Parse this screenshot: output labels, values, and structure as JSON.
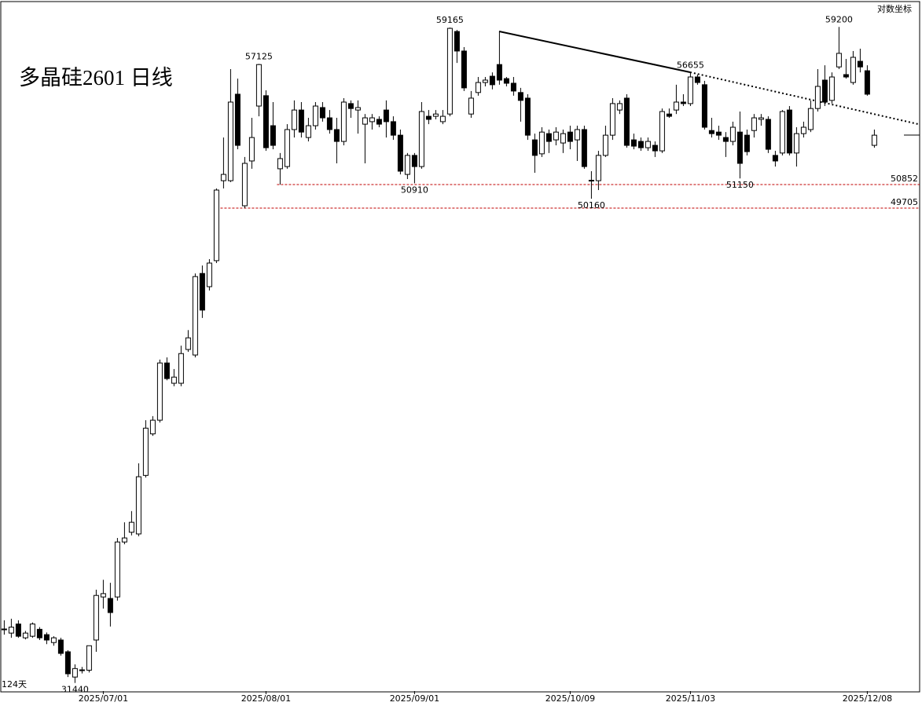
{
  "chart_data": {
    "type": "candlestick",
    "title": "多晶硅2601 日线",
    "scale_label": "对数坐标",
    "period_label": "124天",
    "ylog": true,
    "ylim": [
      31195,
      60620
    ],
    "xlim": [
      -0.6,
      129.4
    ],
    "xticks": [
      {
        "value": 14,
        "label": "2025/07/01"
      },
      {
        "value": 37,
        "label": "2025/08/01"
      },
      {
        "value": 58,
        "label": "2025/09/01"
      },
      {
        "value": 80,
        "label": "2025/10/09"
      },
      {
        "value": 97,
        "label": "2025/11/03"
      },
      {
        "value": 122,
        "label": "2025/12/08"
      }
    ],
    "up_color": "#ffffff",
    "down_color": "#000000",
    "open": [
      33110,
      32990,
      33280,
      32840,
      32890,
      33110,
      32940,
      32690,
      32770,
      32400,
      31620,
      31830,
      31830,
      32770,
      34160,
      34110,
      34160,
      36020,
      36360,
      36300,
      38410,
      39980,
      40510,
      42810,
      41980,
      41980,
      43370,
      43140,
      46670,
      46080,
      47250,
      51040,
      51040,
      55480,
      49820,
      52020,
      54850,
      55400,
      53820,
      51630,
      51740,
      53620,
      54640,
      53210,
      53820,
      54770,
      54230,
      53620,
      53010,
      54980,
      54640,
      53900,
      54030,
      54150,
      54640,
      54030,
      53330,
      51350,
      52300,
      51740,
      54310,
      54310,
      54030,
      54430,
      58940,
      57840,
      54430,
      55570,
      56110,
      56450,
      57090,
      56320,
      56070,
      55570,
      55270,
      53090,
      52380,
      53410,
      53090,
      52930,
      53490,
      53090,
      53620,
      51040,
      51040,
      52300,
      53330,
      54640,
      55270,
      53090,
      53010,
      52690,
      52810,
      52530,
      54430,
      54640,
      55060,
      54980,
      56410,
      55990,
      53570,
      53490,
      53210,
      53010,
      53490,
      53330,
      53570,
      54150,
      54150,
      52300,
      52420,
      54640,
      52420,
      53410,
      53620,
      54720,
      56240,
      55150,
      56960,
      56540,
      56110,
      57270,
      56750,
      52810
    ],
    "high": [
      33400,
      33450,
      33400,
      33060,
      33330,
      33180,
      33010,
      32890,
      32840,
      32450,
      32010,
      31930,
      32590,
      34400,
      34730,
      34630,
      36160,
      36710,
      37110,
      38860,
      40510,
      40670,
      42950,
      43040,
      42560,
      43530,
      44190,
      46670,
      47030,
      47320,
      50660,
      53210,
      56840,
      56320,
      52220,
      54230,
      57125,
      55690,
      55060,
      52420,
      53900,
      55150,
      55060,
      54230,
      55060,
      55060,
      54640,
      54230,
      55270,
      55150,
      55150,
      54430,
      54430,
      54310,
      55150,
      54310,
      53620,
      52420,
      52420,
      55060,
      54640,
      54640,
      54640,
      59165,
      59030,
      58060,
      55650,
      56410,
      56410,
      56660,
      58940,
      56410,
      56410,
      55820,
      55480,
      53410,
      53740,
      53620,
      53740,
      53620,
      53820,
      53820,
      53820,
      51510,
      52530,
      53820,
      55270,
      55150,
      55480,
      53410,
      53210,
      53210,
      53010,
      54720,
      54720,
      55990,
      55480,
      56655,
      56540,
      56200,
      54230,
      53820,
      53490,
      54030,
      54560,
      53620,
      54430,
      54430,
      54310,
      52530,
      54640,
      54850,
      53740,
      54030,
      55150,
      56840,
      57050,
      56660,
      59200,
      57400,
      57840,
      57970,
      57050,
      53620
    ],
    "low": [
      32940,
      32840,
      32840,
      32790,
      32840,
      32770,
      32640,
      32590,
      32280,
      31620,
      31440,
      31730,
      31760,
      32400,
      33780,
      33200,
      34040,
      35940,
      36250,
      36220,
      38330,
      39900,
      40420,
      42100,
      41860,
      41860,
      43270,
      43040,
      44710,
      45910,
      47140,
      50660,
      50970,
      52610,
      49705,
      51630,
      54310,
      52530,
      52610,
      50852,
      51630,
      53210,
      53210,
      53010,
      53620,
      54030,
      53410,
      51900,
      52810,
      54230,
      53410,
      51900,
      53620,
      53740,
      53210,
      53090,
      51350,
      51120,
      50910,
      51630,
      53900,
      54150,
      53900,
      54310,
      57180,
      55650,
      54230,
      55400,
      55900,
      55740,
      55990,
      55900,
      55400,
      54030,
      53090,
      51430,
      52220,
      52420,
      52810,
      52420,
      52610,
      52020,
      51630,
      50160,
      50580,
      52220,
      53090,
      54430,
      52690,
      52610,
      52530,
      52530,
      52220,
      52420,
      54230,
      54430,
      54850,
      54850,
      55990,
      53620,
      53210,
      53090,
      52220,
      52810,
      51150,
      52300,
      53210,
      53820,
      52420,
      51740,
      52300,
      52300,
      51740,
      53210,
      53490,
      54560,
      54850,
      54980,
      56840,
      56320,
      55990,
      56660,
      55400,
      52690
    ],
    "close": [
      33120,
      33180,
      32890,
      32990,
      33280,
      32840,
      32770,
      32840,
      32350,
      31720,
      31880,
      31840,
      32590,
      34210,
      34270,
      33650,
      36020,
      36160,
      36710,
      38360,
      40200,
      40510,
      42810,
      42170,
      42230,
      43200,
      43860,
      46530,
      45050,
      47140,
      50580,
      51350,
      55060,
      52810,
      51900,
      53210,
      57090,
      52690,
      52810,
      52140,
      53620,
      54640,
      53490,
      53820,
      54850,
      54230,
      53620,
      53010,
      55060,
      54720,
      54770,
      54230,
      54230,
      53900,
      54030,
      53330,
      51510,
      52300,
      51740,
      54560,
      54150,
      54430,
      54310,
      59120,
      57840,
      55820,
      55270,
      56110,
      56240,
      55990,
      56240,
      56070,
      55650,
      55150,
      53330,
      52300,
      53490,
      53010,
      53490,
      53410,
      53010,
      53620,
      51740,
      51060,
      52300,
      53330,
      54980,
      54980,
      52810,
      52770,
      52690,
      53010,
      52530,
      54560,
      54310,
      55060,
      54980,
      56410,
      56110,
      53740,
      53410,
      53330,
      53010,
      53740,
      51900,
      52490,
      54230,
      54230,
      52610,
      52020,
      54560,
      52420,
      53410,
      53740,
      54720,
      55900,
      55060,
      56410,
      57710,
      56410,
      57490,
      56960,
      55480,
      53330
    ],
    "hlines": [
      {
        "value": 50852,
        "label": "50852",
        "color": "#c00000"
      },
      {
        "value": 49705,
        "label": "49705",
        "color": "#c00000"
      }
    ]
  }
}
